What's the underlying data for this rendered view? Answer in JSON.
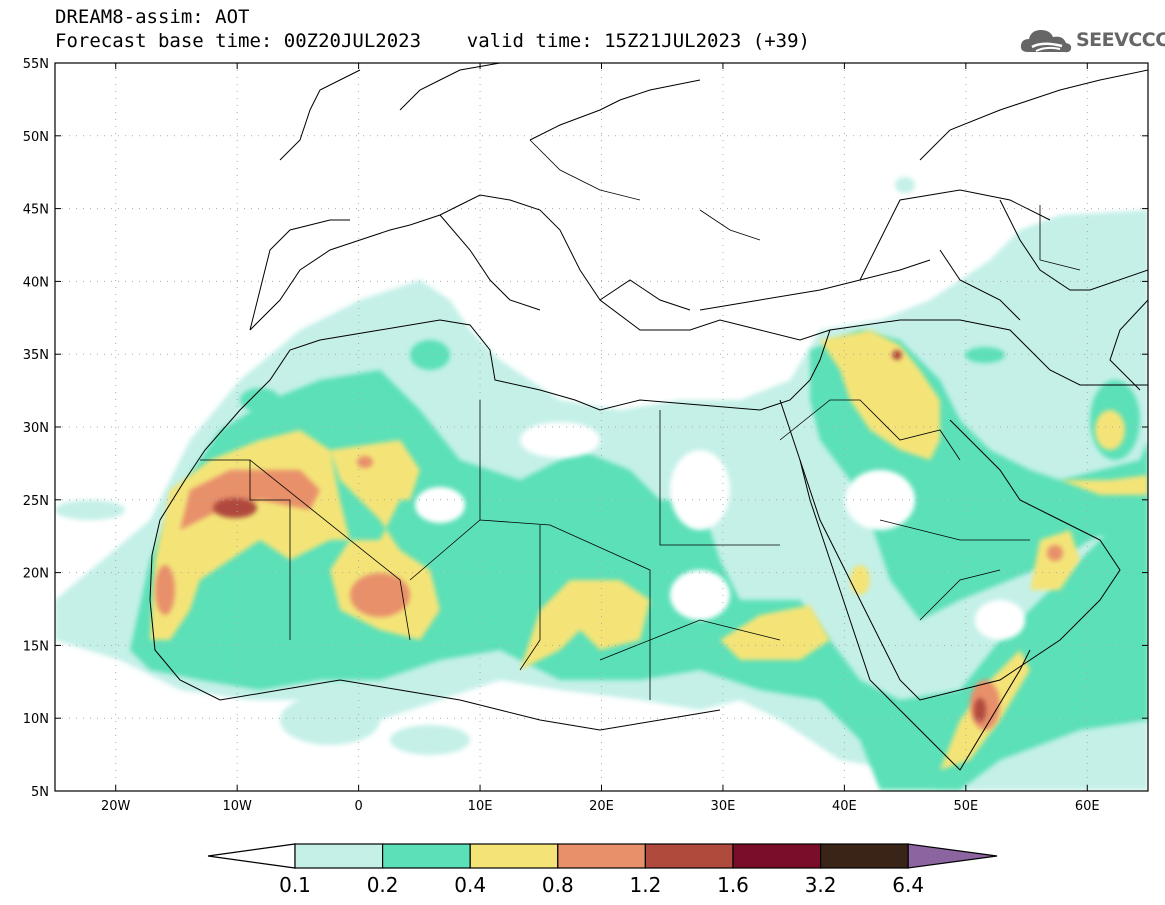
{
  "title": {
    "line1": "DREAM8-assim: AOT",
    "line2": "Forecast base time: 00Z20JUL2023    valid time: 15Z21JUL2023 (+39)"
  },
  "logo": {
    "text": "SEEVCCC",
    "icon": "cloud-icon"
  },
  "map": {
    "lon_range": [
      -25,
      65
    ],
    "lat_range": [
      5,
      55
    ],
    "lat_ticks": [
      "55N",
      "50N",
      "45N",
      "40N",
      "35N",
      "30N",
      "25N",
      "20N",
      "15N",
      "10N",
      "5N"
    ],
    "lat_values": [
      55,
      50,
      45,
      40,
      35,
      30,
      25,
      20,
      15,
      10,
      5
    ],
    "lon_ticks": [
      "20W",
      "10W",
      "0",
      "10E",
      "20E",
      "30E",
      "40E",
      "50E",
      "60E"
    ],
    "lon_values": [
      -20,
      -10,
      0,
      10,
      20,
      30,
      40,
      50,
      60
    ],
    "grid": "dotted"
  },
  "colorbar": {
    "labels": [
      "0.1",
      "0.2",
      "0.4",
      "0.8",
      "1.2",
      "1.6",
      "3.2",
      "6.4"
    ],
    "colors": [
      "#c4f0e8",
      "#5ce0b8",
      "#f4e478",
      "#e8906a",
      "#b04a3c",
      "#7a0e2a",
      "#3a2418"
    ],
    "under_color": "#ffffff",
    "over_color": "#8c64a0"
  }
}
